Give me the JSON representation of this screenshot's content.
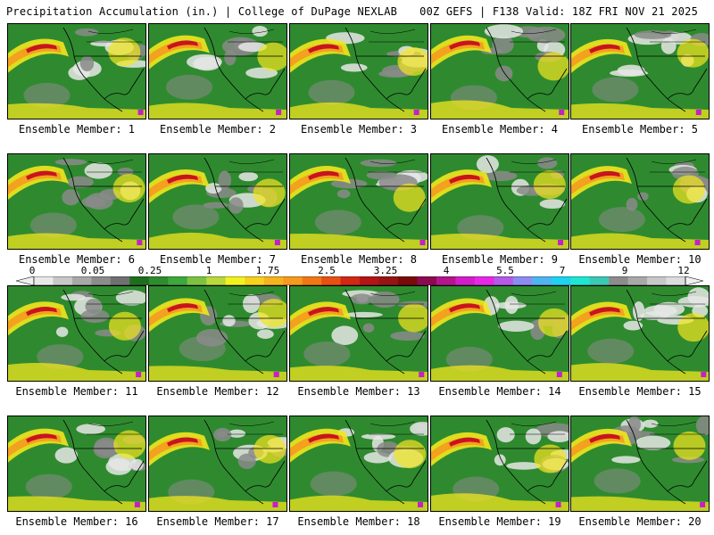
{
  "header": {
    "title": "Precipitation Accumulation (in.) | College of DuPage NEXLAB",
    "run_info": "00Z GEFS | F138 Valid: 18Z FRI NOV 21 2025"
  },
  "members": [
    {
      "label": "Ensemble Member: 1"
    },
    {
      "label": "Ensemble Member: 2"
    },
    {
      "label": "Ensemble Member: 3"
    },
    {
      "label": "Ensemble Member: 4"
    },
    {
      "label": "Ensemble Member: 5"
    },
    {
      "label": "Ensemble Member: 6"
    },
    {
      "label": "Ensemble Member: 7"
    },
    {
      "label": "Ensemble Member: 8"
    },
    {
      "label": "Ensemble Member: 9"
    },
    {
      "label": "Ensemble Member: 10"
    },
    {
      "label": "Ensemble Member: 11"
    },
    {
      "label": "Ensemble Member: 12"
    },
    {
      "label": "Ensemble Member: 13"
    },
    {
      "label": "Ensemble Member: 14"
    },
    {
      "label": "Ensemble Member: 15"
    },
    {
      "label": "Ensemble Member: 16"
    },
    {
      "label": "Ensemble Member: 17"
    },
    {
      "label": "Ensemble Member: 18"
    },
    {
      "label": "Ensemble Member: 19"
    },
    {
      "label": "Ensemble Member: 20"
    }
  ],
  "colorbar": {
    "tick_labels": [
      "0",
      "0.05",
      "0.25",
      "1",
      "1.75",
      "2.5",
      "3.25",
      "4",
      "5.5",
      "7",
      "9",
      "12"
    ],
    "colors": [
      "#e8e8e8",
      "#c8c8c8",
      "#a8a8a8",
      "#8c8c8c",
      "#707070",
      "#1e6e1e",
      "#2e8b2e",
      "#3da83d",
      "#7cc242",
      "#b8d93a",
      "#f2f21e",
      "#f5d21e",
      "#f5b41e",
      "#f59a1e",
      "#f07814",
      "#e85014",
      "#d22814",
      "#b41414",
      "#961414",
      "#7a0a0a",
      "#8c0a50",
      "#b4148c",
      "#d21ec8",
      "#e628e6",
      "#b45ae6",
      "#8c8cf0",
      "#50b4f0",
      "#1ed2f0",
      "#1ee6d2",
      "#3cc8b4",
      "#8c8c8c",
      "#a8a8a8",
      "#c8c8c8",
      "#dcdcdc"
    ],
    "map_colors": {
      "ocean_green": "#2f8a2f",
      "land_gray": "#8a8a8a",
      "light": "#e6e6e6",
      "yellow": "#f2e61e",
      "orange": "#f59a1e",
      "red": "#c8141e",
      "magenta": "#c81ec8"
    }
  }
}
